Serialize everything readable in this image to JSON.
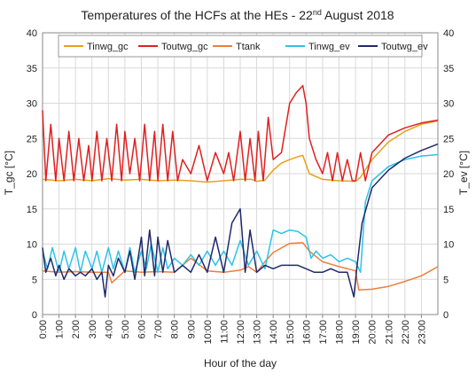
{
  "chart_data": {
    "type": "line",
    "title": {
      "main": "Temperatures of the HCFs at the HEs - 22",
      "sup": "nd",
      "rest": " August 2018"
    },
    "xlabel": "Hour of the day",
    "ylabel_left": "T_gc [°C]",
    "ylabel_right": "T_ev [°C]",
    "ylim": [
      0,
      40
    ],
    "yticks": [
      0,
      5,
      10,
      15,
      20,
      25,
      30,
      35,
      40
    ],
    "xlim": [
      0,
      24
    ],
    "xticks": [
      "0:00",
      "1:00",
      "2:00",
      "3:00",
      "4:00",
      "5:00",
      "6:00",
      "7:00",
      "8:00",
      "9:00",
      "10:00",
      "11:00",
      "12:00",
      "13:00",
      "14:00",
      "15:00",
      "16:00",
      "17:00",
      "18:00",
      "19:00",
      "20:00",
      "21:00",
      "22:00",
      "23:00"
    ],
    "grid": true,
    "legend_position": "top",
    "series": [
      {
        "name": "Tinwg_gc",
        "color": "#e6a21a",
        "x": [
          0,
          1,
          2,
          3,
          4,
          5,
          6,
          7,
          8,
          9,
          10,
          11,
          12,
          12.7,
          13.0,
          13.5,
          14.0,
          14.5,
          15.0,
          15.5,
          15.8,
          16.2,
          17,
          18,
          19,
          19.3,
          20,
          21,
          22,
          23,
          24
        ],
        "y": [
          19.2,
          19.0,
          19.2,
          19.0,
          19.3,
          19.1,
          19.2,
          19.0,
          19.1,
          19.0,
          18.8,
          19.0,
          19.2,
          19.2,
          18.9,
          19.1,
          20.5,
          21.5,
          22.0,
          22.4,
          22.6,
          20.0,
          19.2,
          19.0,
          18.9,
          19.5,
          22.0,
          24.5,
          26.0,
          27.0,
          27.5
        ]
      },
      {
        "name": "Toutwg_gc",
        "color": "#e02020",
        "x": [
          0,
          0.2,
          0.5,
          0.8,
          1.0,
          1.3,
          1.6,
          1.9,
          2.2,
          2.5,
          2.8,
          3.0,
          3.3,
          3.6,
          3.9,
          4.2,
          4.5,
          4.8,
          5.0,
          5.3,
          5.6,
          5.9,
          6.2,
          6.5,
          6.8,
          7.0,
          7.3,
          7.6,
          7.9,
          8.2,
          8.5,
          9,
          9.5,
          10,
          10.5,
          11,
          11.3,
          11.6,
          12,
          12.3,
          12.6,
          12.9,
          13.1,
          13.4,
          13.7,
          14.0,
          14.5,
          15.0,
          15.4,
          15.8,
          16.0,
          16.2,
          16.6,
          17.0,
          17.3,
          17.6,
          17.9,
          18.2,
          18.5,
          18.8,
          19.0,
          19.3,
          19.6,
          20,
          21,
          22,
          23,
          24
        ],
        "y": [
          29,
          19,
          27,
          19,
          25,
          19,
          26,
          19,
          25,
          19,
          24,
          19,
          26,
          19,
          25,
          19,
          27,
          19,
          26,
          20,
          25,
          19,
          27,
          19,
          26,
          19,
          27,
          19,
          26,
          19,
          22,
          20,
          24,
          19,
          23,
          20,
          23,
          19,
          26,
          19,
          25,
          19,
          26,
          19,
          28,
          22,
          23,
          30,
          31.5,
          32.5,
          30,
          25,
          22,
          20,
          23,
          19,
          23,
          19,
          22,
          19,
          19,
          23,
          19,
          23,
          25.5,
          26.5,
          27.2,
          27.6
        ]
      },
      {
        "name": "Ttank",
        "color": "#f07d3a",
        "x": [
          0,
          1,
          2,
          3,
          4,
          4.2,
          5,
          6,
          7,
          8,
          9,
          10,
          11,
          12,
          12.5,
          13,
          13.5,
          14,
          15,
          15.8,
          16.2,
          17,
          18,
          19,
          19.2,
          20,
          21,
          22,
          23,
          24
        ],
        "y": [
          6.2,
          6.0,
          6.1,
          6.0,
          6.0,
          4.5,
          6.2,
          6.0,
          6.1,
          6.0,
          8.0,
          6.2,
          6.0,
          6.3,
          6.8,
          6.0,
          7.5,
          8.8,
          10.1,
          10.2,
          9.0,
          7.5,
          6.8,
          6.2,
          3.5,
          3.6,
          4.0,
          4.7,
          5.5,
          6.8
        ]
      },
      {
        "name": "Tinwg_ev",
        "color": "#2cc3e8",
        "x": [
          0,
          0.3,
          0.6,
          1.0,
          1.3,
          1.6,
          2.0,
          2.3,
          2.6,
          3.0,
          3.3,
          3.6,
          4.0,
          4.3,
          4.6,
          5.0,
          5.3,
          5.6,
          6.0,
          6.3,
          6.6,
          7.0,
          7.3,
          7.6,
          8.0,
          8.5,
          9,
          9.5,
          10,
          10.5,
          11,
          11.5,
          12,
          12.5,
          13,
          13.5,
          14.0,
          14.5,
          15.0,
          15.5,
          16.0,
          16.3,
          16.6,
          17,
          17.5,
          18,
          18.5,
          19,
          19.3,
          19.6,
          20,
          21,
          22,
          23,
          24
        ],
        "y": [
          9,
          6.5,
          9.5,
          6,
          9,
          6.5,
          9.5,
          6,
          9,
          6.5,
          9,
          6,
          9.5,
          6.5,
          9,
          6,
          9.5,
          6,
          9,
          6.5,
          10,
          6,
          9.5,
          6.5,
          8,
          7,
          8.5,
          7,
          9,
          7,
          9,
          7,
          10.5,
          7,
          9,
          6.5,
          12,
          11.5,
          12,
          11.8,
          11,
          8,
          9,
          8,
          8.5,
          7.5,
          8,
          7.5,
          6,
          16,
          19,
          21,
          22,
          22.5,
          22.7
        ]
      },
      {
        "name": "Toutwg_ev",
        "color": "#1f2a6b",
        "x": [
          0,
          0.2,
          0.5,
          0.8,
          1.0,
          1.3,
          1.6,
          2.0,
          2.3,
          2.6,
          3.0,
          3.3,
          3.6,
          3.8,
          4.0,
          4.3,
          4.6,
          5.0,
          5.3,
          5.6,
          6.0,
          6.2,
          6.5,
          6.8,
          7.0,
          7.3,
          7.6,
          8.0,
          8.5,
          9,
          9.5,
          10,
          10.5,
          11,
          11.5,
          12,
          12.3,
          12.6,
          13,
          13.5,
          14,
          14.5,
          15,
          15.5,
          16,
          16.5,
          17,
          17.5,
          18,
          18.5,
          18.9,
          19.1,
          19.4,
          20,
          21,
          22,
          23,
          24
        ],
        "y": [
          9.5,
          6,
          8,
          5.5,
          7,
          5,
          6.5,
          5.5,
          6,
          5.5,
          6.5,
          5,
          6,
          2.5,
          7,
          5.5,
          8,
          6,
          9,
          5,
          11,
          5.5,
          12,
          5.5,
          11,
          6,
          10.5,
          6,
          7,
          6,
          8.5,
          6,
          11,
          6,
          13,
          15,
          6,
          12,
          6,
          7,
          6.5,
          7,
          7,
          7,
          6.5,
          6,
          6,
          6.5,
          6,
          6,
          2.5,
          7,
          13,
          18,
          20.5,
          22.2,
          23.3,
          24.2
        ]
      }
    ]
  }
}
